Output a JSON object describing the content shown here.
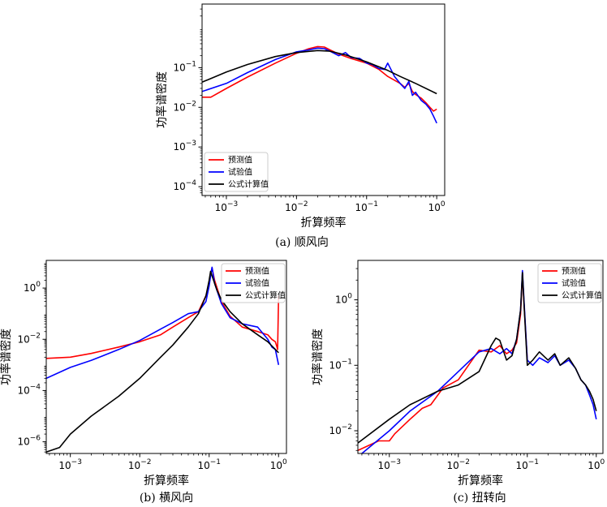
{
  "chart_data": [
    {
      "type": "line",
      "caption": "(a) 顺风向",
      "xlabel": "折算频率",
      "ylabel": "功率谱密度",
      "xscale": "log",
      "yscale": "log",
      "xlim": [
        0.00045,
        1.3
      ],
      "ylim": [
        6e-05,
        4
      ],
      "xticks": [
        0.001,
        0.01,
        0.1,
        1
      ],
      "xtick_labels": [
        "10^-3",
        "10^-2",
        "10^-1",
        "10^0"
      ],
      "yticks": [
        0.0001,
        0.001,
        0.01,
        0.1
      ],
      "ytick_labels": [
        "10^-4",
        "10^-3",
        "10^-2",
        "10^-1"
      ],
      "legend": "lower-left",
      "series": [
        {
          "name": "预测值",
          "color": "#ff0000",
          "x": [
            0.00045,
            0.0006,
            0.001,
            0.002,
            0.005,
            0.01,
            0.015,
            0.02,
            0.025,
            0.03,
            0.04,
            0.06,
            0.1,
            0.15,
            0.2,
            0.3,
            0.35,
            0.4,
            0.45,
            0.5,
            0.6,
            0.7,
            0.8,
            0.9,
            1.0
          ],
          "y": [
            0.018,
            0.018,
            0.03,
            0.058,
            0.13,
            0.23,
            0.3,
            0.34,
            0.33,
            0.28,
            0.22,
            0.17,
            0.13,
            0.09,
            0.06,
            0.04,
            0.032,
            0.04,
            0.025,
            0.021,
            0.017,
            0.013,
            0.01,
            0.008,
            0.009
          ]
        },
        {
          "name": "试验值",
          "color": "#0000ff",
          "x": [
            0.00045,
            0.001,
            0.002,
            0.005,
            0.01,
            0.015,
            0.02,
            0.025,
            0.03,
            0.04,
            0.05,
            0.06,
            0.08,
            0.1,
            0.12,
            0.15,
            0.18,
            0.2,
            0.25,
            0.3,
            0.35,
            0.4,
            0.45,
            0.5,
            0.6,
            0.7,
            0.8,
            0.9,
            1.0
          ],
          "y": [
            0.025,
            0.04,
            0.075,
            0.16,
            0.25,
            0.28,
            0.31,
            0.3,
            0.26,
            0.2,
            0.24,
            0.18,
            0.17,
            0.13,
            0.12,
            0.095,
            0.09,
            0.13,
            0.06,
            0.04,
            0.03,
            0.045,
            0.02,
            0.024,
            0.015,
            0.012,
            0.009,
            0.006,
            0.004
          ]
        },
        {
          "name": "公式计算值",
          "color": "#000000",
          "x": [
            0.00045,
            0.001,
            0.002,
            0.005,
            0.01,
            0.02,
            0.03,
            0.05,
            0.1,
            0.2,
            0.3,
            0.5,
            1.0
          ],
          "y": [
            0.043,
            0.078,
            0.12,
            0.19,
            0.24,
            0.27,
            0.26,
            0.21,
            0.14,
            0.085,
            0.06,
            0.04,
            0.022
          ]
        }
      ]
    },
    {
      "type": "line",
      "caption": "(b) 横风向",
      "xlabel": "折算频率",
      "ylabel": "功率谱密度",
      "xscale": "log",
      "yscale": "log",
      "xlim": [
        0.00045,
        1.3
      ],
      "ylim": [
        3.5e-07,
        12
      ],
      "xticks": [
        0.001,
        0.01,
        0.1,
        1
      ],
      "xtick_labels": [
        "10^-3",
        "10^-2",
        "10^-1",
        "10^0"
      ],
      "yticks": [
        1e-06,
        0.0001,
        0.01,
        1
      ],
      "ytick_labels": [
        "10^-6",
        "10^-4",
        "10^-2",
        "10^0"
      ],
      "legend": "upper-right",
      "series": [
        {
          "name": "预测值",
          "color": "#ff0000",
          "x": [
            0.00045,
            0.001,
            0.002,
            0.005,
            0.01,
            0.02,
            0.03,
            0.05,
            0.07,
            0.09,
            0.1,
            0.105,
            0.11,
            0.12,
            0.15,
            0.2,
            0.3,
            0.5,
            0.7,
            0.8,
            0.9,
            0.95,
            0.97,
            1.0
          ],
          "y": [
            0.0018,
            0.002,
            0.0028,
            0.005,
            0.008,
            0.015,
            0.03,
            0.07,
            0.12,
            0.5,
            1.5,
            3.5,
            6.0,
            2.0,
            0.3,
            0.08,
            0.03,
            0.02,
            0.015,
            0.01,
            0.008,
            0.005,
            0.004,
            0.5
          ]
        },
        {
          "name": "试验值",
          "color": "#0000ff",
          "x": [
            0.00045,
            0.001,
            0.002,
            0.005,
            0.01,
            0.02,
            0.03,
            0.05,
            0.07,
            0.09,
            0.1,
            0.105,
            0.11,
            0.12,
            0.15,
            0.2,
            0.3,
            0.5,
            0.7,
            0.8,
            0.9,
            0.95,
            1.0
          ],
          "y": [
            0.0003,
            0.0008,
            0.0015,
            0.004,
            0.009,
            0.025,
            0.045,
            0.1,
            0.12,
            0.3,
            1.2,
            3.0,
            6.5,
            1.5,
            0.25,
            0.07,
            0.04,
            0.03,
            0.01,
            0.005,
            0.004,
            0.002,
            0.001
          ]
        },
        {
          "name": "公式计算值",
          "color": "#000000",
          "x": [
            0.00045,
            0.0007,
            0.001,
            0.002,
            0.005,
            0.01,
            0.02,
            0.03,
            0.05,
            0.07,
            0.09,
            0.1,
            0.105,
            0.11,
            0.13,
            0.15,
            0.2,
            0.3,
            0.5,
            0.7,
            1.0
          ],
          "y": [
            4e-07,
            6e-07,
            2e-06,
            1e-05,
            6e-05,
            0.0003,
            0.002,
            0.006,
            0.03,
            0.1,
            0.5,
            2.0,
            4.5,
            3.0,
            0.8,
            0.35,
            0.12,
            0.04,
            0.015,
            0.008,
            0.003
          ]
        }
      ]
    },
    {
      "type": "line",
      "caption": "(c) 扭转向",
      "xlabel": "折算频率",
      "ylabel": "功率谱密度",
      "xscale": "log",
      "yscale": "log",
      "xlim": [
        0.00035,
        1.25
      ],
      "ylim": [
        0.0045,
        4
      ],
      "xticks": [
        0.001,
        0.01,
        0.1,
        1
      ],
      "xtick_labels": [
        "10^-3",
        "10^-2",
        "10^-1",
        "10^0"
      ],
      "yticks": [
        0.01,
        0.1,
        1
      ],
      "ytick_labels": [
        "10^-2",
        "10^-1",
        "10^0"
      ],
      "legend": "upper-right",
      "series": [
        {
          "name": "预测值",
          "color": "#ff0000",
          "x": [
            0.00035,
            0.0007,
            0.001,
            0.0012,
            0.002,
            0.003,
            0.004,
            0.006,
            0.01,
            0.02,
            0.03,
            0.04,
            0.05,
            0.06,
            0.07,
            0.08,
            0.085,
            0.09,
            0.1
          ],
          "y": [
            0.005,
            0.007,
            0.007,
            0.009,
            0.015,
            0.022,
            0.025,
            0.045,
            0.06,
            0.17,
            0.16,
            0.2,
            0.15,
            0.17,
            0.22,
            0.6,
            2.5,
            0.8,
            0.12
          ]
        },
        {
          "name": "试验值",
          "color": "#0000ff",
          "x": [
            0.00035,
            0.001,
            0.002,
            0.005,
            0.01,
            0.02,
            0.03,
            0.04,
            0.05,
            0.06,
            0.07,
            0.08,
            0.085,
            0.09,
            0.1,
            0.12,
            0.15,
            0.2,
            0.25,
            0.3,
            0.4,
            0.5,
            0.6,
            0.7,
            0.8,
            0.9,
            1.0
          ],
          "y": [
            0.004,
            0.01,
            0.02,
            0.04,
            0.08,
            0.16,
            0.18,
            0.15,
            0.18,
            0.15,
            0.25,
            0.7,
            2.8,
            0.9,
            0.12,
            0.1,
            0.13,
            0.11,
            0.14,
            0.1,
            0.12,
            0.09,
            0.06,
            0.05,
            0.035,
            0.025,
            0.015
          ]
        },
        {
          "name": "公式计算值",
          "color": "#000000",
          "x": [
            0.00035,
            0.001,
            0.002,
            0.005,
            0.01,
            0.02,
            0.03,
            0.035,
            0.04,
            0.05,
            0.06,
            0.07,
            0.08,
            0.085,
            0.09,
            0.1,
            0.12,
            0.15,
            0.2,
            0.25,
            0.3,
            0.4,
            0.5,
            0.6,
            0.7,
            0.8,
            0.9,
            1.0
          ],
          "y": [
            0.0065,
            0.015,
            0.025,
            0.04,
            0.05,
            0.08,
            0.2,
            0.26,
            0.24,
            0.12,
            0.14,
            0.25,
            0.7,
            2.6,
            0.8,
            0.1,
            0.12,
            0.16,
            0.12,
            0.15,
            0.1,
            0.13,
            0.09,
            0.06,
            0.05,
            0.04,
            0.03,
            0.02
          ]
        }
      ]
    }
  ]
}
